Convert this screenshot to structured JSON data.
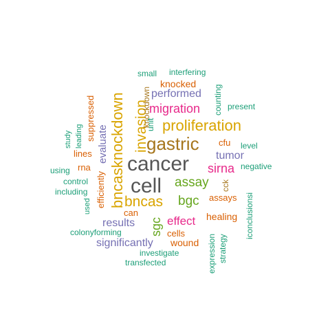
{
  "words": [
    {
      "text": "cancer",
      "color": "#555555"
    },
    {
      "text": "cell",
      "color": "#555555"
    },
    {
      "text": "bncasknockdown",
      "color": "#d9a400"
    },
    {
      "text": "gastric",
      "color": "#a6761d"
    },
    {
      "text": "proliferation",
      "color": "#d9a400"
    },
    {
      "text": "invasion",
      "color": "#d9a400"
    },
    {
      "text": "migration",
      "color": "#e7298a"
    },
    {
      "text": "bncas",
      "color": "#d9a400"
    },
    {
      "text": "assay",
      "color": "#66a61e"
    },
    {
      "text": "bgc",
      "color": "#66a61e"
    },
    {
      "text": "sirna",
      "color": "#e7298a"
    },
    {
      "text": "effect",
      "color": "#e7298a"
    },
    {
      "text": "sgc",
      "color": "#66a61e"
    },
    {
      "text": "evaluate",
      "color": "#7570b3"
    },
    {
      "text": "performed",
      "color": "#7570b3"
    },
    {
      "text": "tumor",
      "color": "#7570b3"
    },
    {
      "text": "results",
      "color": "#7570b3"
    },
    {
      "text": "significantly",
      "color": "#7570b3"
    },
    {
      "text": "knocked",
      "color": "#d95f02"
    },
    {
      "text": "suppressed",
      "color": "#d95f02"
    },
    {
      "text": "lines",
      "color": "#d95f02"
    },
    {
      "text": "rna",
      "color": "#d95f02"
    },
    {
      "text": "efficiently",
      "color": "#d95f02"
    },
    {
      "text": "can",
      "color": "#d95f02"
    },
    {
      "text": "cells",
      "color": "#d95f02"
    },
    {
      "text": "wound",
      "color": "#d95f02"
    },
    {
      "text": "healing",
      "color": "#d95f02"
    },
    {
      "text": "assays",
      "color": "#d95f02"
    },
    {
      "text": "cfu",
      "color": "#d95f02"
    },
    {
      "text": "knockdown",
      "color": "#a6761d"
    },
    {
      "text": "cck",
      "color": "#a6761d"
    },
    {
      "text": "small",
      "color": "#1b9e77"
    },
    {
      "text": "interfering",
      "color": "#1b9e77"
    },
    {
      "text": "counting",
      "color": "#1b9e77"
    },
    {
      "text": "unit",
      "color": "#1b9e77"
    },
    {
      "text": "present",
      "color": "#1b9e77"
    },
    {
      "text": "level",
      "color": "#1b9e77"
    },
    {
      "text": "negative",
      "color": "#1b9e77"
    },
    {
      "text": "study",
      "color": "#1b9e77"
    },
    {
      "text": "leading",
      "color": "#1b9e77"
    },
    {
      "text": "using",
      "color": "#1b9e77"
    },
    {
      "text": "control",
      "color": "#1b9e77"
    },
    {
      "text": "including",
      "color": "#1b9e77"
    },
    {
      "text": "used",
      "color": "#1b9e77"
    },
    {
      "text": "colonyforming",
      "color": "#1b9e77"
    },
    {
      "text": "investigate",
      "color": "#1b9e77"
    },
    {
      "text": "transfected",
      "color": "#1b9e77"
    },
    {
      "text": "expression",
      "color": "#1b9e77"
    },
    {
      "text": "strategy",
      "color": "#1b9e77"
    },
    {
      "text": "iconclusionsi",
      "color": "#1b9e77"
    }
  ]
}
